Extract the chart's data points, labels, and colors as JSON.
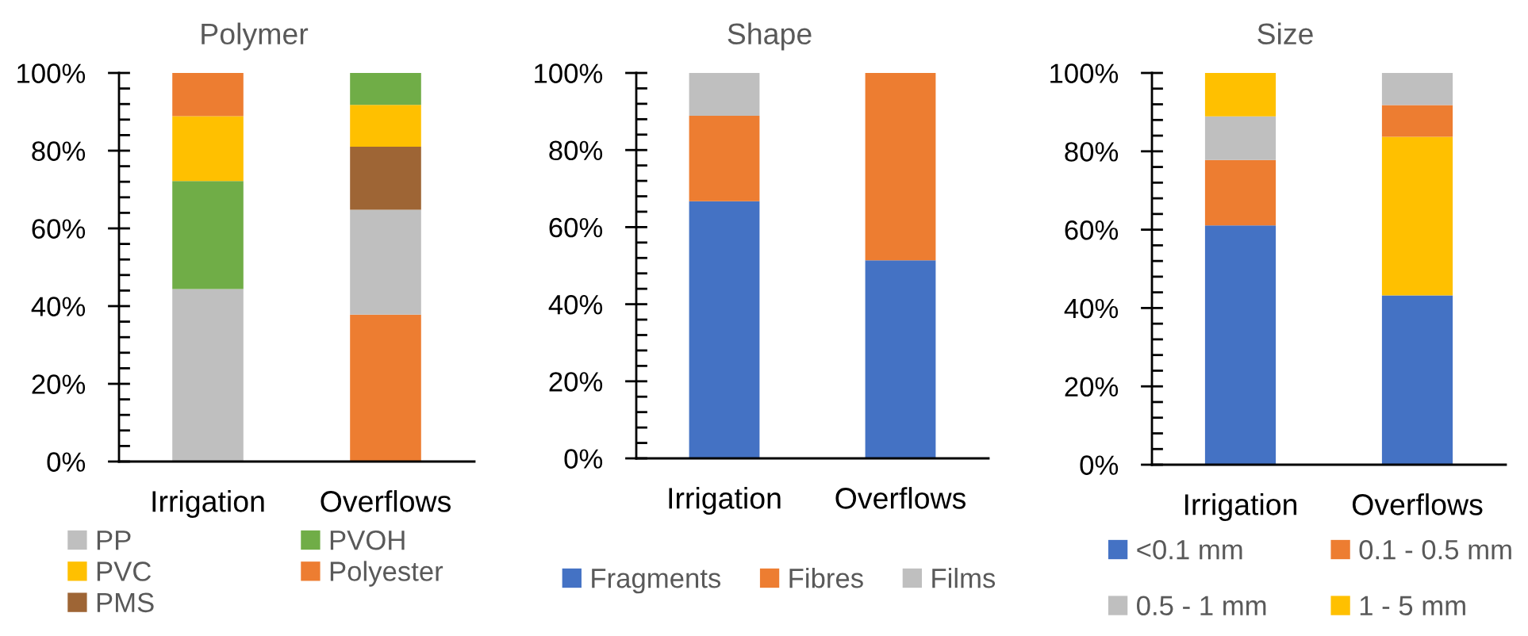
{
  "chart_data": [
    {
      "type": "bar",
      "title": "Polymer",
      "categories": [
        "Irrigation",
        "Overflows"
      ],
      "stacked": true,
      "legend": "bottom",
      "ylim": [
        0,
        100
      ],
      "yticks": [
        {
          "value": 0,
          "label": "0%"
        },
        {
          "value": 4,
          "label": null
        },
        {
          "value": 8,
          "label": null
        },
        {
          "value": 12,
          "label": null
        },
        {
          "value": 16,
          "label": null
        },
        {
          "value": 20,
          "label": "20%"
        },
        {
          "value": 24,
          "label": null
        },
        {
          "value": 28,
          "label": null
        },
        {
          "value": 32,
          "label": null
        },
        {
          "value": 36,
          "label": null
        },
        {
          "value": 40,
          "label": "40%"
        },
        {
          "value": 44,
          "label": null
        },
        {
          "value": 48,
          "label": null
        },
        {
          "value": 52,
          "label": null
        },
        {
          "value": 56,
          "label": null
        },
        {
          "value": 60,
          "label": "60%"
        },
        {
          "value": 64,
          "label": null
        },
        {
          "value": 68,
          "label": null
        },
        {
          "value": 72,
          "label": null
        },
        {
          "value": 76,
          "label": null
        },
        {
          "value": 80,
          "label": "80%"
        },
        {
          "value": 84,
          "label": null
        },
        {
          "value": 88,
          "label": null
        },
        {
          "value": 92,
          "label": null
        },
        {
          "value": 96,
          "label": null
        },
        {
          "value": 100,
          "label": "100%"
        }
      ],
      "series": [
        {
          "color": "#ed7d31",
          "values": [
            null,
            37.8
          ]
        },
        {
          "name": "PP",
          "color": "#bfbfbf",
          "values": [
            44.4,
            27.0
          ]
        },
        {
          "name": "PVOH",
          "color": "#70ad47",
          "values": [
            27.8,
            null
          ]
        },
        {
          "name": "PVC",
          "color": "#ffc000",
          "values": [
            16.7,
            null
          ]
        },
        {
          "name": "Polyester",
          "color": "#ed7d31",
          "values": [
            11.1,
            null
          ]
        },
        {
          "name": "PMS",
          "color": "#9e6535",
          "values": [
            null,
            16.2
          ]
        },
        {
          "color": "#ffc000",
          "values": [
            null,
            10.8
          ]
        },
        {
          "color": "#70ad47",
          "values": [
            null,
            8.2
          ]
        }
      ]
    },
    {
      "type": "bar",
      "title": "Shape",
      "categories": [
        "Irrigation",
        "Overflows"
      ],
      "stacked": true,
      "legend": "bottom",
      "ylim": [
        0,
        100
      ],
      "yticks": [
        {
          "value": 0,
          "label": "0%"
        },
        {
          "value": 4,
          "label": null
        },
        {
          "value": 8,
          "label": null
        },
        {
          "value": 12,
          "label": null
        },
        {
          "value": 16,
          "label": null
        },
        {
          "value": 20,
          "label": "20%"
        },
        {
          "value": 24,
          "label": null
        },
        {
          "value": 28,
          "label": null
        },
        {
          "value": 32,
          "label": null
        },
        {
          "value": 36,
          "label": null
        },
        {
          "value": 40,
          "label": "40%"
        },
        {
          "value": 44,
          "label": null
        },
        {
          "value": 48,
          "label": null
        },
        {
          "value": 52,
          "label": null
        },
        {
          "value": 56,
          "label": null
        },
        {
          "value": 60,
          "label": "60%"
        },
        {
          "value": 64,
          "label": null
        },
        {
          "value": 68,
          "label": null
        },
        {
          "value": 72,
          "label": null
        },
        {
          "value": 76,
          "label": null
        },
        {
          "value": 80,
          "label": "80%"
        },
        {
          "value": 84,
          "label": null
        },
        {
          "value": 88,
          "label": null
        },
        {
          "value": 92,
          "label": null
        },
        {
          "value": 96,
          "label": null
        },
        {
          "value": 100,
          "label": "100%"
        }
      ],
      "series": [
        {
          "name": "Fragments",
          "color": "#4472c4",
          "values": [
            66.7,
            51.4
          ]
        },
        {
          "name": "Fibres",
          "color": "#ed7d31",
          "values": [
            22.2,
            48.6
          ]
        },
        {
          "name": "Films",
          "color": "#bfbfbf",
          "values": [
            11.1,
            null
          ]
        }
      ]
    },
    {
      "type": "bar",
      "title": "Size",
      "categories": [
        "Irrigation",
        "Overflows"
      ],
      "stacked": true,
      "legend": "bottom",
      "ylim": [
        0,
        100
      ],
      "yticks": [
        {
          "value": 0,
          "label": "0%"
        },
        {
          "value": 4,
          "label": null
        },
        {
          "value": 8,
          "label": null
        },
        {
          "value": 12,
          "label": null
        },
        {
          "value": 16,
          "label": null
        },
        {
          "value": 20,
          "label": "20%"
        },
        {
          "value": 24,
          "label": null
        },
        {
          "value": 28,
          "label": null
        },
        {
          "value": 32,
          "label": null
        },
        {
          "value": 36,
          "label": null
        },
        {
          "value": 40,
          "label": "40%"
        },
        {
          "value": 44,
          "label": null
        },
        {
          "value": 48,
          "label": null
        },
        {
          "value": 52,
          "label": null
        },
        {
          "value": 56,
          "label": null
        },
        {
          "value": 60,
          "label": "60%"
        },
        {
          "value": 64,
          "label": null
        },
        {
          "value": 68,
          "label": null
        },
        {
          "value": 72,
          "label": null
        },
        {
          "value": 76,
          "label": null
        },
        {
          "value": 80,
          "label": "80%"
        },
        {
          "value": 84,
          "label": null
        },
        {
          "value": 88,
          "label": null
        },
        {
          "value": 92,
          "label": null
        },
        {
          "value": 96,
          "label": null
        },
        {
          "value": 100,
          "label": "100%"
        }
      ],
      "series": [
        {
          "name": "<0.1 mm",
          "color": "#4472c4",
          "values": [
            61.1,
            43.2
          ]
        },
        {
          "color": "#ffc000",
          "values": [
            null,
            40.5
          ]
        },
        {
          "name": "0.1 - 0.5 mm",
          "color": "#ed7d31",
          "values": [
            16.7,
            8.1
          ]
        },
        {
          "name": "0.5 - 1 mm",
          "color": "#bfbfbf",
          "values": [
            11.1,
            8.2
          ]
        },
        {
          "name": "1 - 5 mm",
          "color": "#ffc000",
          "values": [
            11.1,
            null
          ]
        }
      ]
    }
  ]
}
